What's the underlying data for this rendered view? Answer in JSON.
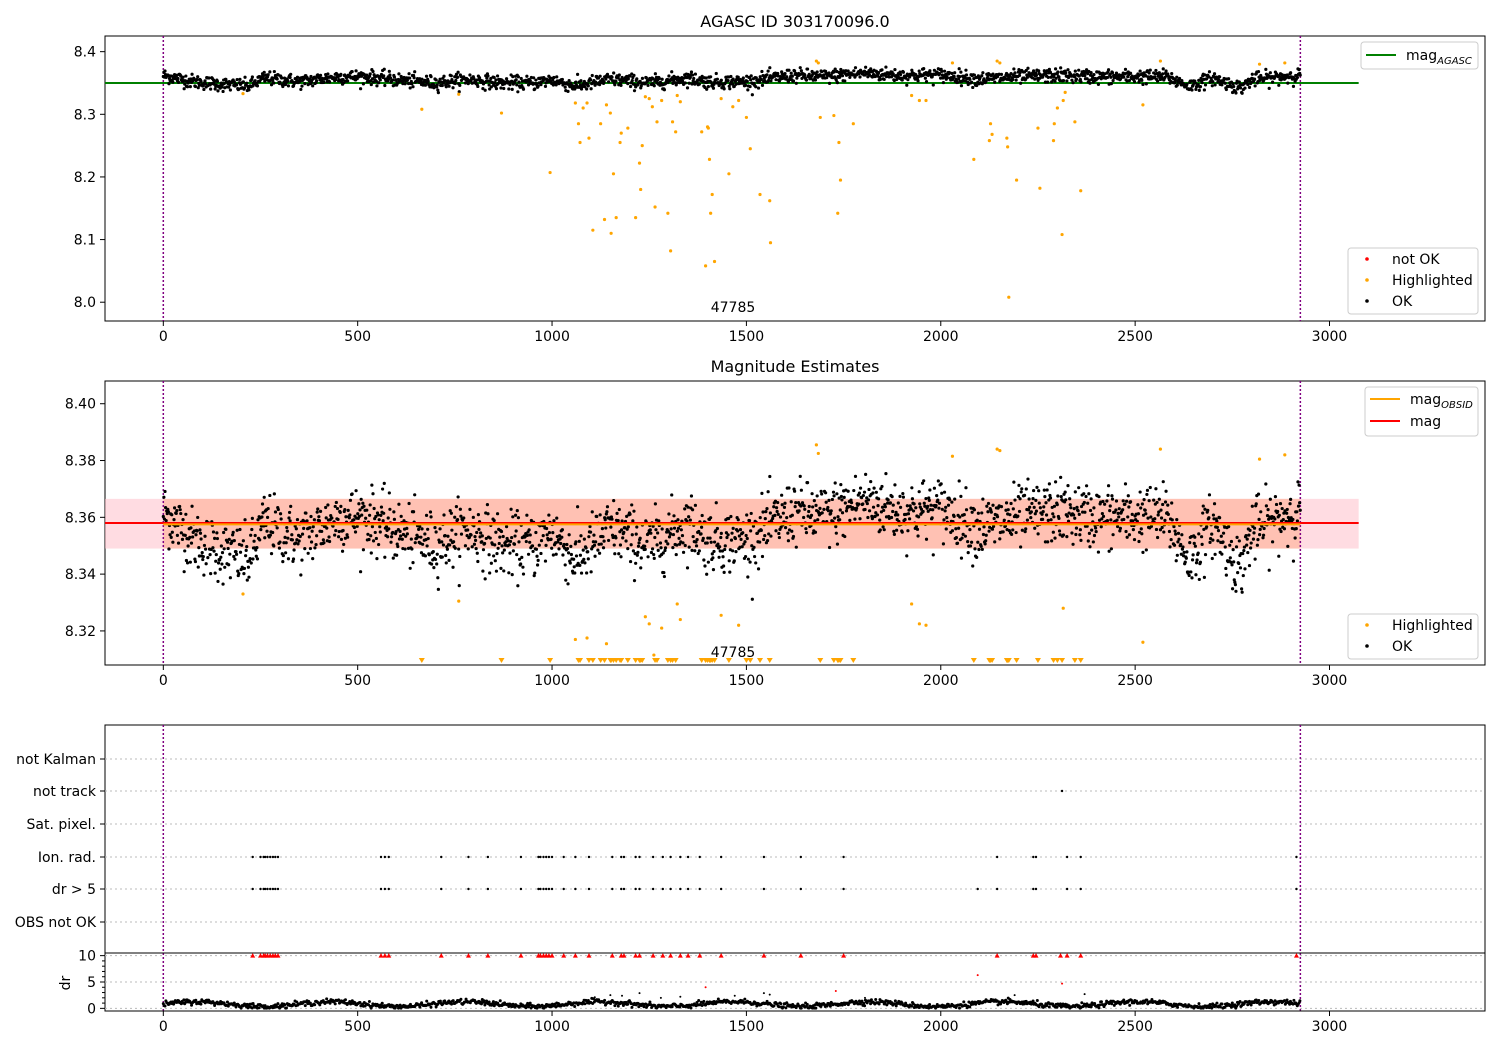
{
  "colors": {
    "ok": "#000000",
    "highlighted": "#ffa500",
    "not_ok": "#ff0000",
    "mag_agasc": "#008000",
    "mag_obsid": "#ffa500",
    "mag": "#ff0000",
    "obsid_line": "#800080",
    "band_mag": "#ffc0cb",
    "band_obsid": "#ffa07a"
  },
  "chart_data": [
    {
      "type": "scatter",
      "title": "AGASC ID 303170096.0",
      "xlim": [
        -150,
        3400
      ],
      "ylim": [
        7.97,
        8.425
      ],
      "xticks": [
        0,
        500,
        1000,
        1500,
        2000,
        2500,
        3000
      ],
      "yticks": [
        8.0,
        8.1,
        8.2,
        8.3,
        8.4
      ],
      "ytick_labels": [
        "8.0",
        "8.1",
        "8.2",
        "8.3",
        "8.4"
      ],
      "obsid_label": "47785",
      "obsid_bounds": [
        0,
        2925
      ],
      "mag_agasc": 8.35,
      "legend_lines": [
        {
          "label": "mag",
          "sub": "AGASC",
          "color_key": "mag_agasc"
        }
      ],
      "legend_points": [
        {
          "label": "not OK",
          "color_key": "not_ok"
        },
        {
          "label": "Highlighted",
          "color_key": "highlighted"
        },
        {
          "label": "OK",
          "color_key": "ok"
        }
      ],
      "highlighted_points": [
        [
          205,
          8.333
        ],
        [
          665,
          8.308
        ],
        [
          760,
          8.332
        ],
        [
          870,
          8.302
        ],
        [
          995,
          8.207
        ],
        [
          1060,
          8.318
        ],
        [
          1068,
          8.285
        ],
        [
          1072,
          8.255
        ],
        [
          1080,
          8.31
        ],
        [
          1090,
          8.318
        ],
        [
          1095,
          8.262
        ],
        [
          1105,
          8.115
        ],
        [
          1125,
          8.285
        ],
        [
          1135,
          8.132
        ],
        [
          1140,
          8.315
        ],
        [
          1150,
          8.302
        ],
        [
          1152,
          8.11
        ],
        [
          1158,
          8.205
        ],
        [
          1165,
          8.135
        ],
        [
          1175,
          8.255
        ],
        [
          1178,
          8.27
        ],
        [
          1195,
          8.278
        ],
        [
          1215,
          8.135
        ],
        [
          1225,
          8.222
        ],
        [
          1228,
          8.18
        ],
        [
          1232,
          8.25
        ],
        [
          1240,
          8.328
        ],
        [
          1250,
          8.325
        ],
        [
          1258,
          8.312
        ],
        [
          1265,
          8.152
        ],
        [
          1270,
          8.288
        ],
        [
          1282,
          8.322
        ],
        [
          1298,
          8.142
        ],
        [
          1305,
          8.082
        ],
        [
          1310,
          8.288
        ],
        [
          1318,
          8.272
        ],
        [
          1322,
          8.33
        ],
        [
          1330,
          8.32
        ],
        [
          1385,
          8.272
        ],
        [
          1395,
          8.058
        ],
        [
          1400,
          8.28
        ],
        [
          1402,
          8.278
        ],
        [
          1405,
          8.228
        ],
        [
          1408,
          8.142
        ],
        [
          1412,
          8.172
        ],
        [
          1418,
          8.065
        ],
        [
          1435,
          8.325
        ],
        [
          1455,
          8.205
        ],
        [
          1465,
          8.312
        ],
        [
          1480,
          8.322
        ],
        [
          1500,
          8.295
        ],
        [
          1510,
          8.245
        ],
        [
          1535,
          8.172
        ],
        [
          1560,
          8.162
        ],
        [
          1562,
          8.095
        ],
        [
          1680,
          8.385
        ],
        [
          1685,
          8.382
        ],
        [
          1690,
          8.295
        ],
        [
          1725,
          8.298
        ],
        [
          1735,
          8.142
        ],
        [
          1738,
          8.255
        ],
        [
          1742,
          8.195
        ],
        [
          1775,
          8.285
        ],
        [
          1925,
          8.33
        ],
        [
          1945,
          8.322
        ],
        [
          1962,
          8.322
        ],
        [
          2030,
          8.382
        ],
        [
          2085,
          8.228
        ],
        [
          2125,
          8.258
        ],
        [
          2128,
          8.285
        ],
        [
          2132,
          8.268
        ],
        [
          2145,
          8.385
        ],
        [
          2152,
          8.382
        ],
        [
          2170,
          8.262
        ],
        [
          2172,
          8.248
        ],
        [
          2175,
          8.008
        ],
        [
          2195,
          8.195
        ],
        [
          2250,
          8.278
        ],
        [
          2255,
          8.182
        ],
        [
          2290,
          8.258
        ],
        [
          2292,
          8.285
        ],
        [
          2300,
          8.31
        ],
        [
          2312,
          8.108
        ],
        [
          2315,
          8.322
        ],
        [
          2320,
          8.335
        ],
        [
          2345,
          8.288
        ],
        [
          2360,
          8.178
        ],
        [
          2520,
          8.315
        ],
        [
          2565,
          8.385
        ],
        [
          2820,
          8.38
        ],
        [
          2885,
          8.382
        ]
      ]
    },
    {
      "type": "scatter",
      "title": "Magnitude Estimates",
      "xlim": [
        -150,
        3400
      ],
      "ylim": [
        8.308,
        8.408
      ],
      "xticks": [
        0,
        500,
        1000,
        1500,
        2000,
        2500,
        3000
      ],
      "yticks": [
        8.32,
        8.34,
        8.36,
        8.38,
        8.4
      ],
      "ytick_labels": [
        "8.32",
        "8.34",
        "8.36",
        "8.38",
        "8.40"
      ],
      "obsid_label": "47785",
      "obsid_bounds": [
        0,
        2925
      ],
      "mag": 8.358,
      "mag_obsid": 8.3575,
      "band_mag": [
        8.349,
        8.3665
      ],
      "band_obsid": [
        8.349,
        8.3665
      ],
      "legend_lines": [
        {
          "label": "mag",
          "sub": "OBSID",
          "color_key": "mag_obsid"
        },
        {
          "label": "mag",
          "sub": "",
          "color_key": "mag"
        }
      ],
      "legend_points": [
        {
          "label": "Highlighted",
          "color_key": "highlighted"
        },
        {
          "label": "OK",
          "color_key": "ok"
        }
      ],
      "highlighted_points": [
        [
          205,
          8.333
        ],
        [
          760,
          8.3305
        ],
        [
          1060,
          8.317
        ],
        [
          1090,
          8.3175
        ],
        [
          1140,
          8.3155
        ],
        [
          1240,
          8.325
        ],
        [
          1250,
          8.3225
        ],
        [
          1262,
          8.3115
        ],
        [
          1282,
          8.321
        ],
        [
          1322,
          8.3295
        ],
        [
          1330,
          8.324
        ],
        [
          1435,
          8.3255
        ],
        [
          1480,
          8.322
        ],
        [
          1680,
          8.3855
        ],
        [
          1685,
          8.3825
        ],
        [
          1925,
          8.3295
        ],
        [
          1945,
          8.3225
        ],
        [
          1962,
          8.322
        ],
        [
          2030,
          8.3815
        ],
        [
          2145,
          8.384
        ],
        [
          2152,
          8.3835
        ],
        [
          2315,
          8.328
        ],
        [
          2520,
          8.316
        ],
        [
          2565,
          8.384
        ],
        [
          2820,
          8.3805
        ],
        [
          2885,
          8.382
        ]
      ],
      "offscale_markers": [
        665,
        870,
        995,
        1068,
        1072,
        1095,
        1105,
        1125,
        1135,
        1150,
        1152,
        1158,
        1165,
        1175,
        1178,
        1195,
        1215,
        1225,
        1228,
        1232,
        1265,
        1270,
        1298,
        1305,
        1310,
        1318,
        1385,
        1395,
        1400,
        1405,
        1408,
        1412,
        1418,
        1455,
        1500,
        1510,
        1535,
        1560,
        1690,
        1725,
        1735,
        1738,
        1742,
        1775,
        2085,
        2125,
        2128,
        2132,
        2170,
        2172,
        2175,
        2195,
        2250,
        2290,
        2300,
        2312,
        2345,
        2360
      ]
    },
    {
      "type": "scatter",
      "title": "",
      "xlim": [
        -150,
        3400
      ],
      "xticks": [
        0,
        500,
        1000,
        1500,
        2000,
        2500,
        3000
      ],
      "flag_labels": [
        "not Kalman",
        "not track",
        "Sat. pixel.",
        "Ion. rad.",
        "dr > 5",
        "OBS not OK"
      ],
      "flags": {
        "not track": [
          2312
        ],
        "Ion. rad.": [
          230,
          250,
          258,
          262,
          268,
          275,
          282,
          288,
          295,
          560,
          570,
          580,
          715,
          785,
          835,
          920,
          965,
          970,
          978,
          985,
          992,
          1000,
          1030,
          1060,
          1095,
          1155,
          1178,
          1185,
          1215,
          1225,
          1260,
          1285,
          1305,
          1330,
          1350,
          1380,
          1435,
          1545,
          1640,
          1750,
          2145,
          2238,
          2245,
          2325,
          2360,
          2915
        ],
        "dr > 5": [
          230,
          250,
          258,
          262,
          268,
          275,
          282,
          288,
          295,
          560,
          570,
          580,
          715,
          785,
          835,
          920,
          965,
          970,
          978,
          985,
          992,
          1000,
          1030,
          1060,
          1095,
          1155,
          1178,
          1185,
          1215,
          1225,
          1260,
          1285,
          1305,
          1330,
          1350,
          1380,
          1435,
          1545,
          1640,
          1750,
          2095,
          2145,
          2238,
          2245,
          2325,
          2360,
          2915
        ]
      },
      "dr_ylabel": "dr",
      "dr_ylim": [
        -0.5,
        10.5
      ],
      "dr_yticks": [
        0,
        5,
        10
      ],
      "dr_ytick_labels": [
        "0",
        "5",
        "10"
      ],
      "dr_clipped_x": [
        230,
        250,
        258,
        262,
        268,
        275,
        282,
        288,
        295,
        560,
        570,
        580,
        715,
        785,
        835,
        920,
        965,
        970,
        978,
        985,
        992,
        1000,
        1030,
        1060,
        1095,
        1155,
        1178,
        1185,
        1215,
        1225,
        1260,
        1285,
        1305,
        1330,
        1350,
        1380,
        1435,
        1545,
        1640,
        1750,
        2145,
        2238,
        2245,
        2308,
        2325,
        2360,
        2915
      ],
      "dr_outliers": [
        [
          1395,
          4.0
        ],
        [
          1730,
          3.3
        ],
        [
          2095,
          6.3
        ],
        [
          2312,
          4.7
        ],
        [
          1150,
          2.5
        ],
        [
          1180,
          2.4
        ],
        [
          1225,
          2.9
        ],
        [
          1330,
          2.2
        ],
        [
          1470,
          2.4
        ],
        [
          1545,
          2.9
        ],
        [
          1560,
          2.6
        ],
        [
          1805,
          2.0
        ],
        [
          2190,
          2.5
        ],
        [
          2370,
          2.7
        ],
        [
          1280,
          2.0
        ],
        [
          1110,
          2.1
        ]
      ]
    }
  ]
}
